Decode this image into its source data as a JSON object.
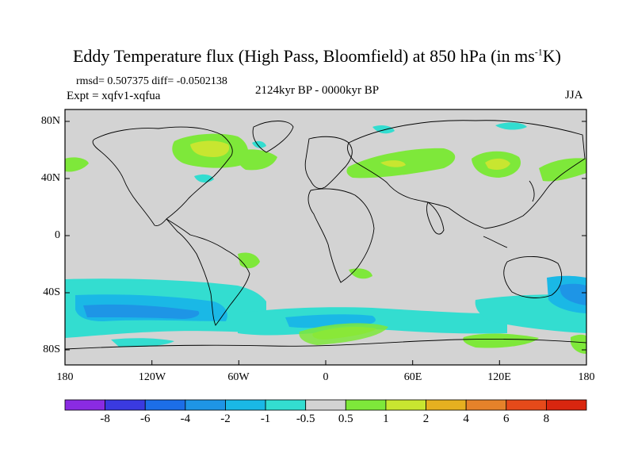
{
  "title": "Eddy Temperature flux (High Pass, Bloomfield) at 850 hPa (in ms",
  "title_sup": "-1",
  "title_end": "K)",
  "stats": "rmsd= 0.507375 diff= -0.0502138",
  "expt": "Expt = xqfv1-xqfua",
  "period": "2124kyr BP - 0000kyr BP",
  "season": "JJA",
  "lat_labels": [
    "80N",
    "40N",
    "0",
    "40S",
    "80S"
  ],
  "lon_labels": [
    "180",
    "120W",
    "60W",
    "0",
    "60E",
    "120E",
    "180"
  ],
  "colorbar": {
    "labels": [
      "-8",
      "-6",
      "-4",
      "-2",
      "-1",
      "-0.5",
      "0.5",
      "1",
      "2",
      "4",
      "6",
      "8"
    ],
    "colors": [
      "#8a2be2",
      "#3a3ae0",
      "#1c6ee8",
      "#1e95e6",
      "#1ab8e6",
      "#33ddd0",
      "#d3d3d3",
      "#7ee83a",
      "#c8e630",
      "#e6b020",
      "#e6822a",
      "#e64a1a",
      "#d9260f"
    ]
  },
  "map_background": "#d3d3d3"
}
